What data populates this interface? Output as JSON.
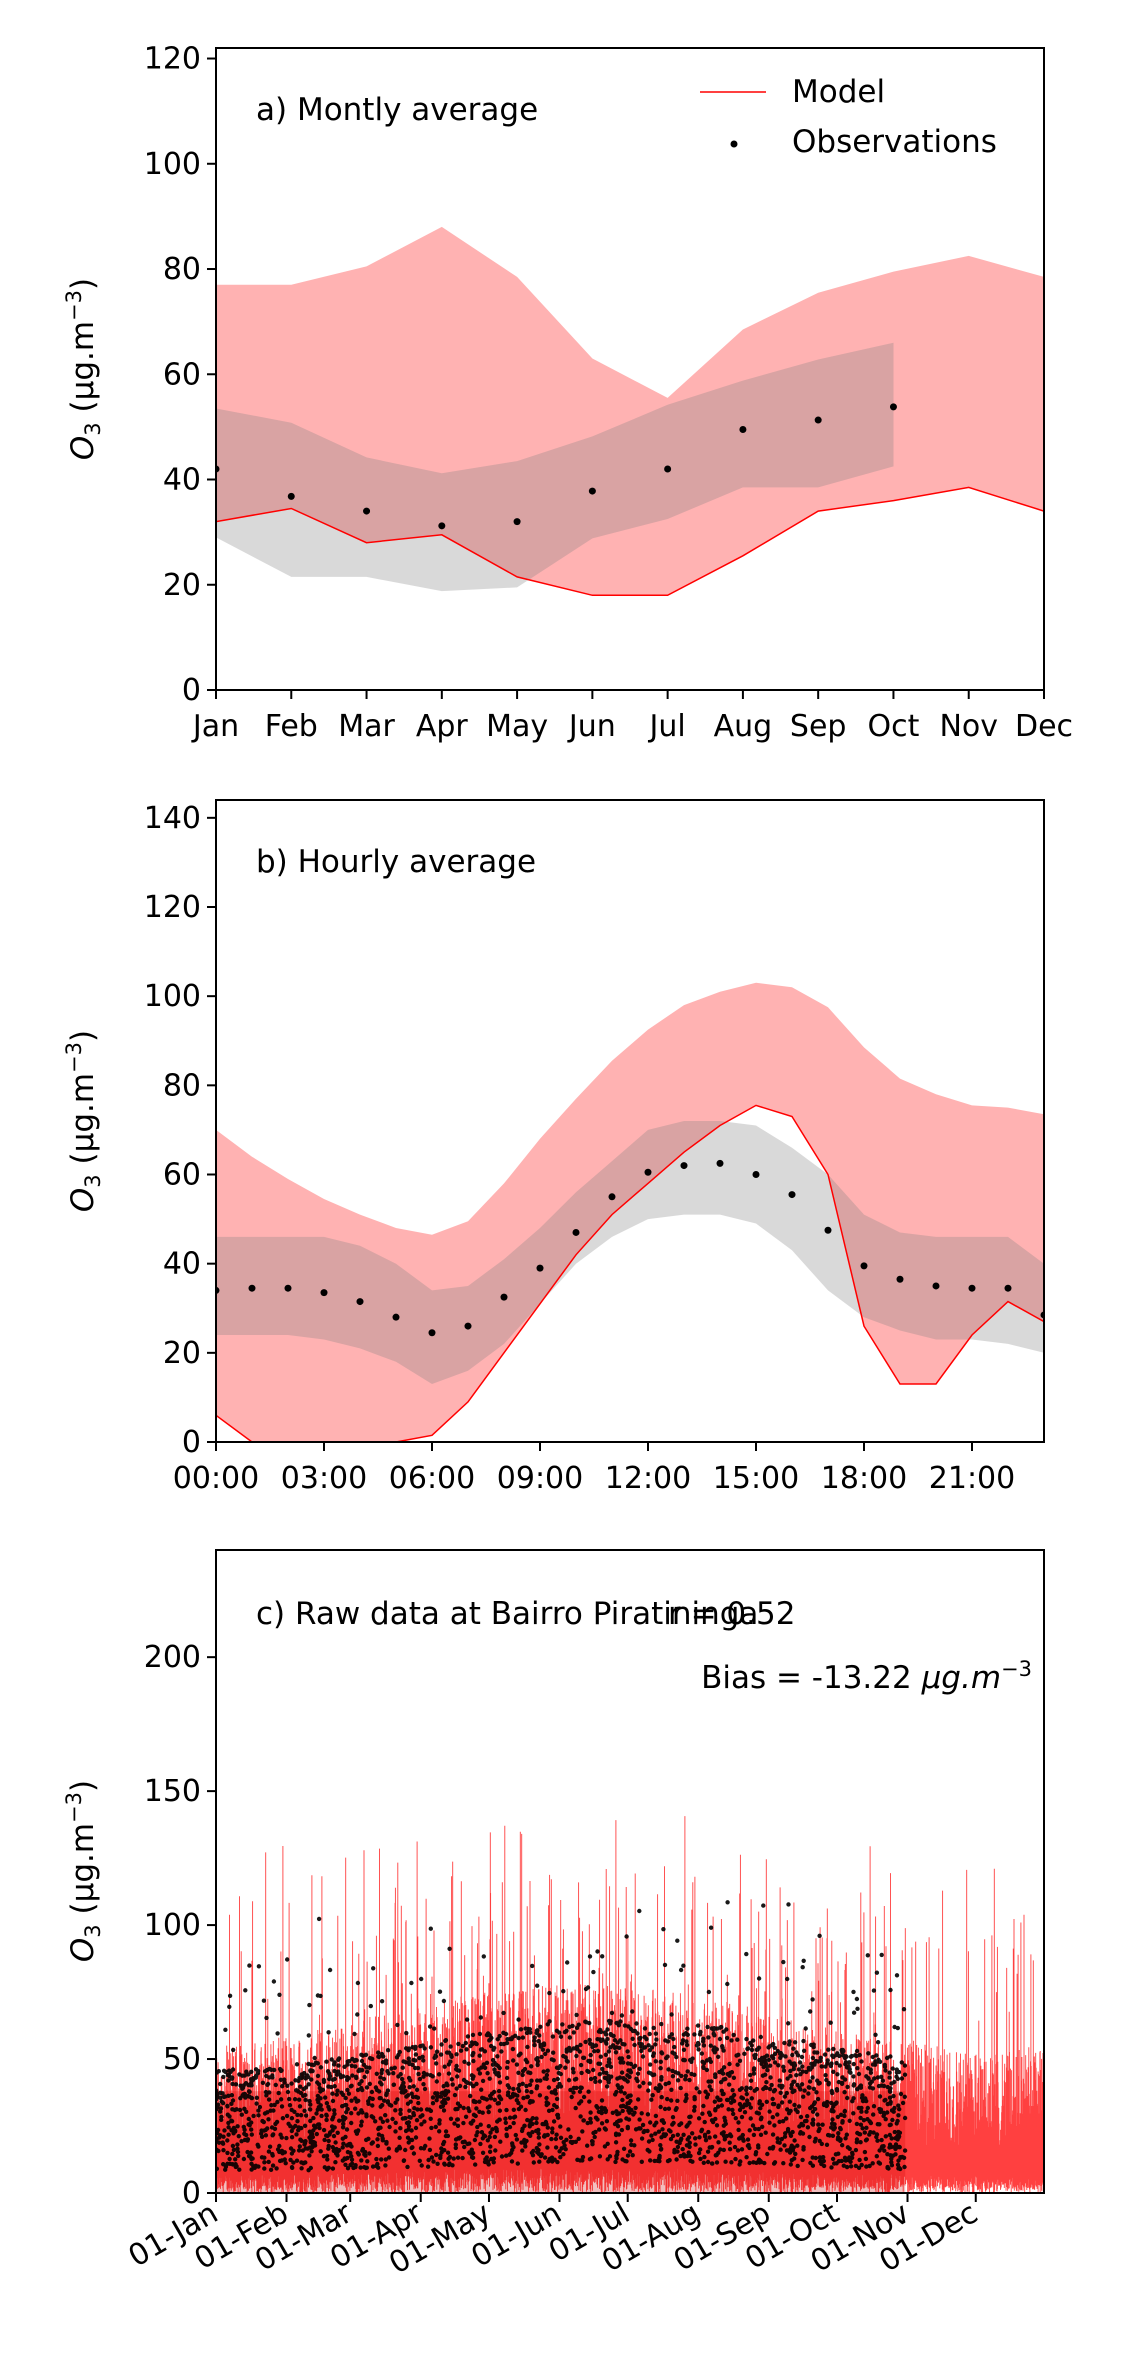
{
  "chart_data": [
    {
      "type": "line",
      "panel_label": "a) Montly average",
      "ylabel": "O3 (µg.m−3)",
      "ylabel_parts": {
        "base": "O",
        "sub": "3",
        "unit": "(μg.m",
        "sup": "−3",
        "close": ")"
      },
      "ylim": [
        0,
        122
      ],
      "yticks": [
        0,
        20,
        40,
        60,
        80,
        100,
        120
      ],
      "x": [
        0,
        1,
        2,
        3,
        4,
        5,
        6,
        7,
        8,
        9,
        10,
        11
      ],
      "xlim": [
        0,
        11
      ],
      "xticklabels": [
        "Jan",
        "Feb",
        "Mar",
        "Apr",
        "May",
        "Jun",
        "Jul",
        "Aug",
        "Sep",
        "Oct",
        "Nov",
        "Dec"
      ],
      "legend": {
        "position": "upper-right",
        "entries": [
          "Model",
          "Observations"
        ]
      },
      "series": [
        {
          "name": "Model",
          "kind": "line",
          "color": "#ff0000",
          "values": [
            32,
            34.5,
            28,
            29.5,
            21.5,
            18,
            18,
            25.5,
            34,
            36,
            38.5,
            34
          ]
        },
        {
          "kind": "band",
          "color": "#ff0000",
          "opacity": 0.3,
          "lower": [
            32,
            34.5,
            28,
            29.5,
            21.5,
            18,
            18,
            25.5,
            34,
            36,
            38.5,
            34
          ],
          "upper": [
            77,
            77,
            80.5,
            88,
            78.5,
            63,
            55.5,
            68.5,
            75.5,
            79.5,
            82.5,
            78.5
          ]
        },
        {
          "name": "Observations",
          "kind": "scatter",
          "color": "#000000",
          "values": [
            42,
            36.8,
            34,
            31.2,
            32,
            37.8,
            42,
            49.5,
            51.3,
            53.8
          ]
        },
        {
          "kind": "band",
          "color": "#808080",
          "opacity": 0.3,
          "lower": [
            29,
            21.5,
            21.5,
            18.8,
            19.5,
            28.8,
            32.5,
            38.5,
            38.5,
            42.5
          ],
          "upper": [
            53.5,
            50.8,
            44.2,
            41.2,
            43.5,
            48.2,
            54.2,
            58.8,
            62.8,
            66
          ]
        }
      ]
    },
    {
      "type": "line",
      "panel_label": "b) Hourly average",
      "ylabel": "O3 (µg.m−3)",
      "ylabel_parts": {
        "base": "O",
        "sub": "3",
        "unit": "(μg.m",
        "sup": "−3",
        "close": ")"
      },
      "ylim": [
        0,
        144
      ],
      "yticks": [
        0,
        20,
        40,
        60,
        80,
        100,
        120,
        140
      ],
      "x": [
        0,
        1,
        2,
        3,
        4,
        5,
        6,
        7,
        8,
        9,
        10,
        11,
        12,
        13,
        14,
        15,
        16,
        17,
        18,
        19,
        20,
        21,
        22,
        23
      ],
      "xlim": [
        0,
        23
      ],
      "xticks": [
        0,
        3,
        6,
        9,
        12,
        15,
        18,
        21
      ],
      "xticklabels": [
        "00:00",
        "03:00",
        "06:00",
        "09:00",
        "12:00",
        "15:00",
        "18:00",
        "21:00"
      ],
      "series": [
        {
          "name": "Model",
          "kind": "line",
          "color": "#ff0000",
          "values": [
            6,
            0,
            0,
            0,
            0,
            0,
            1.5,
            9,
            20,
            31,
            42,
            51,
            58,
            65,
            71,
            75.5,
            73,
            60,
            26,
            13,
            13,
            24,
            31.5,
            27
          ]
        },
        {
          "kind": "band",
          "color": "#ff0000",
          "opacity": 0.3,
          "lower": [
            6,
            0,
            0,
            0,
            0,
            0,
            1.5,
            9,
            20,
            31,
            42,
            51,
            58,
            65,
            71,
            75.5,
            73,
            60,
            26,
            13,
            13,
            24,
            31.5,
            27
          ],
          "upper": [
            70,
            64,
            59,
            54.5,
            51,
            48,
            46.5,
            49.5,
            58,
            68,
            77,
            85.5,
            92.5,
            98,
            101,
            103,
            102,
            97.5,
            88.5,
            81.5,
            78,
            75.5,
            75,
            73.5
          ]
        },
        {
          "name": "Observations",
          "kind": "scatter",
          "color": "#000000",
          "values": [
            34,
            34.5,
            34.5,
            33.5,
            31.5,
            28,
            24.5,
            26,
            32.5,
            39,
            47,
            55,
            60.5,
            62,
            62.5,
            60,
            55.5,
            47.5,
            39.5,
            36.5,
            35,
            34.5,
            34.5,
            28.5
          ]
        },
        {
          "kind": "band",
          "color": "#808080",
          "opacity": 0.3,
          "lower": [
            24,
            24,
            24,
            23,
            21,
            18,
            13,
            16,
            22,
            31,
            40,
            46,
            50,
            51,
            51,
            49,
            43,
            34,
            28,
            25,
            23,
            23,
            22,
            20
          ]
        },
        {
          "kind": "band-upper",
          "upper": [
            46,
            46,
            46,
            46,
            44,
            40,
            34,
            35,
            41,
            48,
            56,
            63,
            70,
            72,
            72,
            71,
            66,
            60,
            51,
            47,
            46,
            46,
            46,
            40
          ]
        }
      ]
    },
    {
      "type": "line",
      "panel_label": "c) Raw data at Bairro Piratininga",
      "stat_r": "r = 0.52",
      "stat_bias": "Bias = -13.22 µg.m−3",
      "bias_parts": {
        "text": "Bias = -13.22 ",
        "unit": "μg.m",
        "sup": "−3"
      },
      "ylabel": "O3 (µg.m−3)",
      "ylabel_parts": {
        "base": "O",
        "sub": "3",
        "unit": "(μg.m",
        "sup": "−3",
        "close": ")"
      },
      "ylim": [
        0,
        240
      ],
      "yticks": [
        0,
        50,
        100,
        150,
        200
      ],
      "xlim": [
        "2019-01-01",
        "2019-12-31"
      ],
      "xticks": [
        "2019-01-01",
        "2019-02-01",
        "2019-03-01",
        "2019-04-01",
        "2019-05-01",
        "2019-06-01",
        "2019-07-01",
        "2019-08-01",
        "2019-09-01",
        "2019-10-01",
        "2019-11-01",
        "2019-12-01"
      ],
      "xticklabels": [
        "01-Jan",
        "01-Feb",
        "01-Mar",
        "01-Apr",
        "01-May",
        "01-Jun",
        "01-Jul",
        "01-Aug",
        "01-Sep",
        "01-Oct",
        "01-Nov",
        "01-Dec"
      ],
      "series": [
        {
          "name": "Model",
          "kind": "line",
          "color": "#ff0000",
          "resolution": "hourly",
          "range": [
            0,
            150
          ]
        },
        {
          "name": "Observations",
          "kind": "scatter",
          "color": "#000000",
          "resolution": "hourly",
          "coverage": [
            "2019-01-01",
            "2019-10-31"
          ],
          "range": [
            0,
            121
          ]
        }
      ]
    }
  ]
}
